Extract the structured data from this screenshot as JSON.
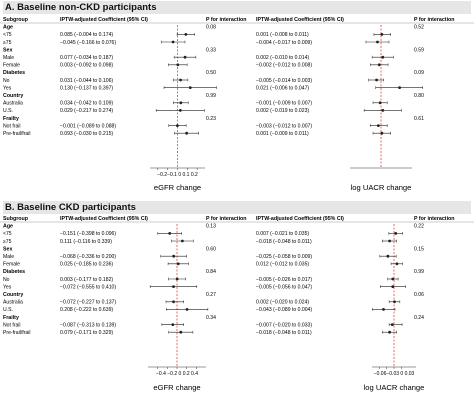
{
  "chart_data": [
    {
      "type": "forest",
      "title": "A. Baseline non-CKD participants",
      "columns": {
        "subgroup": "Subgroup",
        "coef_egfr": "IPTW-adjusted Coefficient (95% CI)",
        "p_egfr": "P for interaction",
        "coef_uacr": "IPTW-adjusted Coefficient (95% CI)",
        "p_uacr": "P for interaction"
      },
      "egfr": {
        "xlabel": "eGFR change",
        "xlim": [
          -0.28,
          0.28
        ],
        "ticks": [
          -0.2,
          -0.1,
          0,
          0.1,
          0.2
        ],
        "tick_text": "−0.2−0.1 0 0.1 0.2"
      },
      "uacr": {
        "xlabel": "log UACR change",
        "xlim": [
          -0.035,
          0.035
        ],
        "ticks": []
      },
      "groups": [
        {
          "name": "Age",
          "p_egfr": "0.08",
          "p_uacr": "0.52",
          "rows": [
            {
              "label": "<75",
              "egfr": {
                "est": 0.085,
                "lo": -0.004,
                "hi": 0.174,
                "text": "0.085 (−0.004 to 0.174)"
              },
              "uacr": {
                "est": 0.001,
                "lo": -0.008,
                "hi": 0.011,
                "text": "0.001 (−0.008 to 0.011)"
              }
            },
            {
              "label": "≥75",
              "egfr": {
                "est": -0.045,
                "lo": -0.166,
                "hi": 0.076,
                "text": "−0.045 (−0.166 to 0.076)"
              },
              "uacr": {
                "est": -0.004,
                "lo": -0.017,
                "hi": 0.009,
                "text": "−0.004 (−0.017 to 0.009)"
              }
            }
          ]
        },
        {
          "name": "Sex",
          "p_egfr": "0.33",
          "p_uacr": "0.59",
          "rows": [
            {
              "label": "Male",
              "egfr": {
                "est": 0.077,
                "lo": -0.034,
                "hi": 0.187,
                "text": "0.077 (−0.034 to 0.187)"
              },
              "uacr": {
                "est": 0.002,
                "lo": -0.01,
                "hi": 0.014,
                "text": "0.002 (−0.010 to 0.014)"
              }
            },
            {
              "label": "Female",
              "egfr": {
                "est": 0.003,
                "lo": -0.092,
                "hi": 0.098,
                "text": "0.003 (−0.092 to 0.098)"
              },
              "uacr": {
                "est": -0.002,
                "lo": -0.012,
                "hi": 0.008,
                "text": "−0.002 (−0.012 to 0.008)"
              }
            }
          ]
        },
        {
          "name": "Diabetes",
          "p_egfr": "0.50",
          "p_uacr": "0.09",
          "rows": [
            {
              "label": "No",
              "egfr": {
                "est": 0.031,
                "lo": -0.044,
                "hi": 0.106,
                "text": "0.031 (−0.044 to 0.106)"
              },
              "uacr": {
                "est": -0.005,
                "lo": -0.014,
                "hi": 0.003,
                "text": "−0.005 (−0.014 to 0.003)"
              }
            },
            {
              "label": "Yes",
              "egfr": {
                "est": 0.13,
                "lo": -0.137,
                "hi": 0.397,
                "text": "0.130 (−0.137 to 0.397)"
              },
              "uacr": {
                "est": 0.021,
                "lo": -0.006,
                "hi": 0.047,
                "text": "0.021 (−0.006 to 0.047)"
              }
            }
          ]
        },
        {
          "name": "Country",
          "p_egfr": "0.99",
          "p_uacr": "0.80",
          "rows": [
            {
              "label": "Australia",
              "egfr": {
                "est": 0.034,
                "lo": -0.042,
                "hi": 0.109,
                "text": "0.034 (−0.042 to 0.109)"
              },
              "uacr": {
                "est": -0.001,
                "lo": -0.009,
                "hi": 0.007,
                "text": "−0.001 (−0.009 to 0.007)"
              }
            },
            {
              "label": "U.S.",
              "egfr": {
                "est": 0.029,
                "lo": -0.217,
                "hi": 0.274,
                "text": "0.029 (−0.217 to 0.274)"
              },
              "uacr": {
                "est": 0.002,
                "lo": -0.019,
                "hi": 0.023,
                "text": "0.002 (−0.019 to 0.023)"
              }
            }
          ]
        },
        {
          "name": "Frailty",
          "p_egfr": "0.23",
          "p_uacr": "0.61",
          "rows": [
            {
              "label": "Not frail",
              "egfr": {
                "est": -0.001,
                "lo": -0.089,
                "hi": 0.088,
                "text": "−0.001 (−0.089 to 0.088)"
              },
              "uacr": {
                "est": -0.003,
                "lo": -0.012,
                "hi": 0.007,
                "text": "−0.003 (−0.012 to 0.007)"
              }
            },
            {
              "label": "Pre-frail/frail",
              "egfr": {
                "est": 0.093,
                "lo": -0.03,
                "hi": 0.215,
                "text": "0.093 (−0.030 to 0.215)"
              },
              "uacr": {
                "est": 0.001,
                "lo": -0.009,
                "hi": 0.011,
                "text": "0.001 (−0.009 to 0.011)"
              }
            }
          ]
        }
      ]
    },
    {
      "type": "forest",
      "title": "B. Baseline CKD participants",
      "columns": {
        "subgroup": "Subgroup",
        "coef_egfr": "IPTW-adjusted Coefficient (95% CI)",
        "p_egfr": "P for interaction",
        "coef_uacr": "IPTW-adjusted Coefficient (95% CI)",
        "p_uacr": "P for interaction"
      },
      "egfr": {
        "xlabel": "eGFR change",
        "xlim": [
          -0.6,
          0.6
        ],
        "ticks": [
          -0.4,
          -0.2,
          0,
          0.2,
          0.4
        ],
        "tick_text": "−0.4 −0.2  0  0.2  0.4"
      },
      "uacr": {
        "xlabel": "log UACR change",
        "xlim": [
          -0.09,
          0.09
        ],
        "ticks": [
          -0.06,
          -0.03,
          0,
          0.03
        ],
        "tick_text": "−0.06−0.03 0  0.03"
      },
      "groups": [
        {
          "name": "Age",
          "p_egfr": "0.13",
          "p_uacr": "0.22",
          "rows": [
            {
              "label": "<75",
              "egfr": {
                "est": -0.151,
                "lo": -0.398,
                "hi": 0.096,
                "text": "−0.151 (−0.398 to 0.096)"
              },
              "uacr": {
                "est": 0.007,
                "lo": -0.021,
                "hi": 0.035,
                "text": "0.007 (−0.021 to 0.035)"
              }
            },
            {
              "label": "≥75",
              "egfr": {
                "est": 0.111,
                "lo": -0.116,
                "hi": 0.339,
                "text": "0.111 (−0.116 to 0.339)"
              },
              "uacr": {
                "est": -0.018,
                "lo": -0.048,
                "hi": 0.011,
                "text": "−0.018 (−0.048 to 0.011)"
              }
            }
          ]
        },
        {
          "name": "Sex",
          "p_egfr": "0.60",
          "p_uacr": "0.15",
          "rows": [
            {
              "label": "Male",
              "egfr": {
                "est": -0.068,
                "lo": -0.336,
                "hi": 0.2,
                "text": "−0.068 (−0.336 to 0.200)"
              },
              "uacr": {
                "est": -0.025,
                "lo": -0.058,
                "hi": 0.009,
                "text": "−0.025 (−0.058 to 0.009)"
              }
            },
            {
              "label": "Female",
              "egfr": {
                "est": 0.025,
                "lo": -0.185,
                "hi": 0.236,
                "text": "0.025 (−0.185 to 0.236)"
              },
              "uacr": {
                "est": 0.012,
                "lo": -0.012,
                "hi": 0.035,
                "text": "0.012 (−0.012 to 0.035)"
              }
            }
          ]
        },
        {
          "name": "Diabetes",
          "p_egfr": "0.84",
          "p_uacr": "0.99",
          "rows": [
            {
              "label": "No",
              "egfr": {
                "est": 0.003,
                "lo": -0.177,
                "hi": 0.182,
                "text": "0.003 (−0.177 to 0.182)"
              },
              "uacr": {
                "est": -0.005,
                "lo": -0.026,
                "hi": 0.017,
                "text": "−0.005 (−0.026 to 0.017)"
              }
            },
            {
              "label": "Yes",
              "egfr": {
                "est": -0.072,
                "lo": -0.555,
                "hi": 0.41,
                "text": "−0.072 (−0.555 to 0.410)"
              },
              "uacr": {
                "est": -0.005,
                "lo": -0.056,
                "hi": 0.047,
                "text": "−0.005 (−0.056 to 0.047)"
              }
            }
          ]
        },
        {
          "name": "Country",
          "p_egfr": "0.27",
          "p_uacr": "0.06",
          "rows": [
            {
              "label": "Australia",
              "egfr": {
                "est": -0.072,
                "lo": -0.227,
                "hi": 0.137,
                "text": "−0.072 (−0.227 to 0.137)"
              },
              "uacr": {
                "est": 0.002,
                "lo": -0.02,
                "hi": 0.024,
                "text": "0.002 (−0.020 to 0.024)"
              }
            },
            {
              "label": "U.S.",
              "egfr": {
                "est": 0.208,
                "lo": -0.222,
                "hi": 0.639,
                "text": "0.208 (−0.222 to 0.639)"
              },
              "uacr": {
                "est": -0.043,
                "lo": -0.089,
                "hi": 0.004,
                "text": "−0.043 (−0.089 to 0.004)"
              }
            }
          ]
        },
        {
          "name": "Frailty",
          "p_egfr": "0.34",
          "p_uacr": "0.24",
          "rows": [
            {
              "label": "Not frail",
              "egfr": {
                "est": -0.087,
                "lo": -0.313,
                "hi": 0.139,
                "text": "−0.087 (−0.313 to 0.139)"
              },
              "uacr": {
                "est": -0.007,
                "lo": -0.02,
                "hi": 0.033,
                "text": "−0.007 (−0.020 to 0.033)"
              }
            },
            {
              "label": "Pre-frail/frail",
              "egfr": {
                "est": 0.079,
                "lo": -0.171,
                "hi": 0.329,
                "text": "0.079 (−0.171 to 0.329)"
              },
              "uacr": {
                "est": -0.018,
                "lo": -0.048,
                "hi": 0.011,
                "text": "−0.018 (−0.048 to 0.011)"
              }
            }
          ]
        }
      ]
    }
  ],
  "colors": {
    "refline": "#d93025",
    "marker": "#222222",
    "title_bg": "#e6e6e6"
  }
}
